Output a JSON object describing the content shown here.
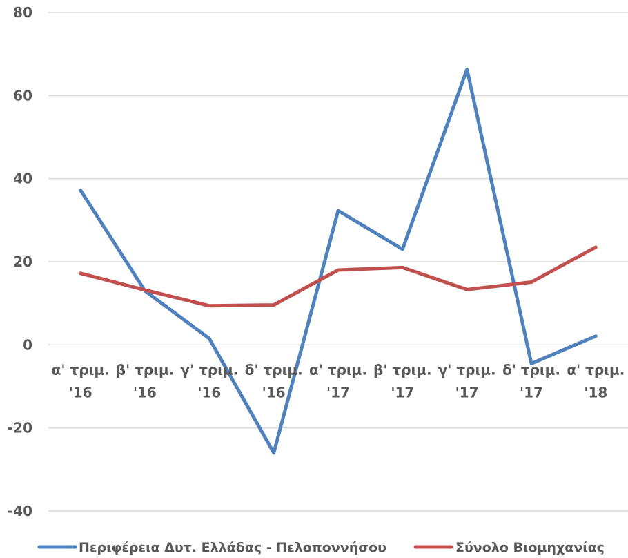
{
  "chart_data": {
    "type": "line",
    "title": "",
    "xlabel": "",
    "ylabel": "",
    "categories": [
      [
        "α' τριμ.",
        "'16"
      ],
      [
        "β' τριμ.",
        "'16"
      ],
      [
        "γ' τριμ.",
        "'16"
      ],
      [
        "δ' τριμ.",
        "'16"
      ],
      [
        "α' τριμ.",
        "'17"
      ],
      [
        "β' τριμ.",
        "'17"
      ],
      [
        "γ' τριμ.",
        "'17"
      ],
      [
        "δ' τριμ.",
        "'17"
      ],
      [
        "α' τριμ.",
        "'18"
      ]
    ],
    "ylim": [
      -40,
      80
    ],
    "yticks": [
      -40,
      -20,
      0,
      20,
      40,
      60,
      80
    ],
    "grid": true,
    "legend_position": "bottom",
    "series": [
      {
        "name": "Περιφέρεια Δυτ. Ελλάδας - Πελοποννήσου",
        "color": "#4f81bd",
        "values": [
          37.2,
          13.0,
          1.5,
          -26.0,
          32.3,
          23.0,
          66.3,
          -4.5,
          2.1
        ]
      },
      {
        "name": "Σύνολο Βιομηχανίας",
        "color": "#c0504d",
        "values": [
          17.2,
          13.2,
          9.4,
          9.6,
          18.0,
          18.6,
          13.3,
          15.1,
          23.5
        ]
      }
    ]
  }
}
